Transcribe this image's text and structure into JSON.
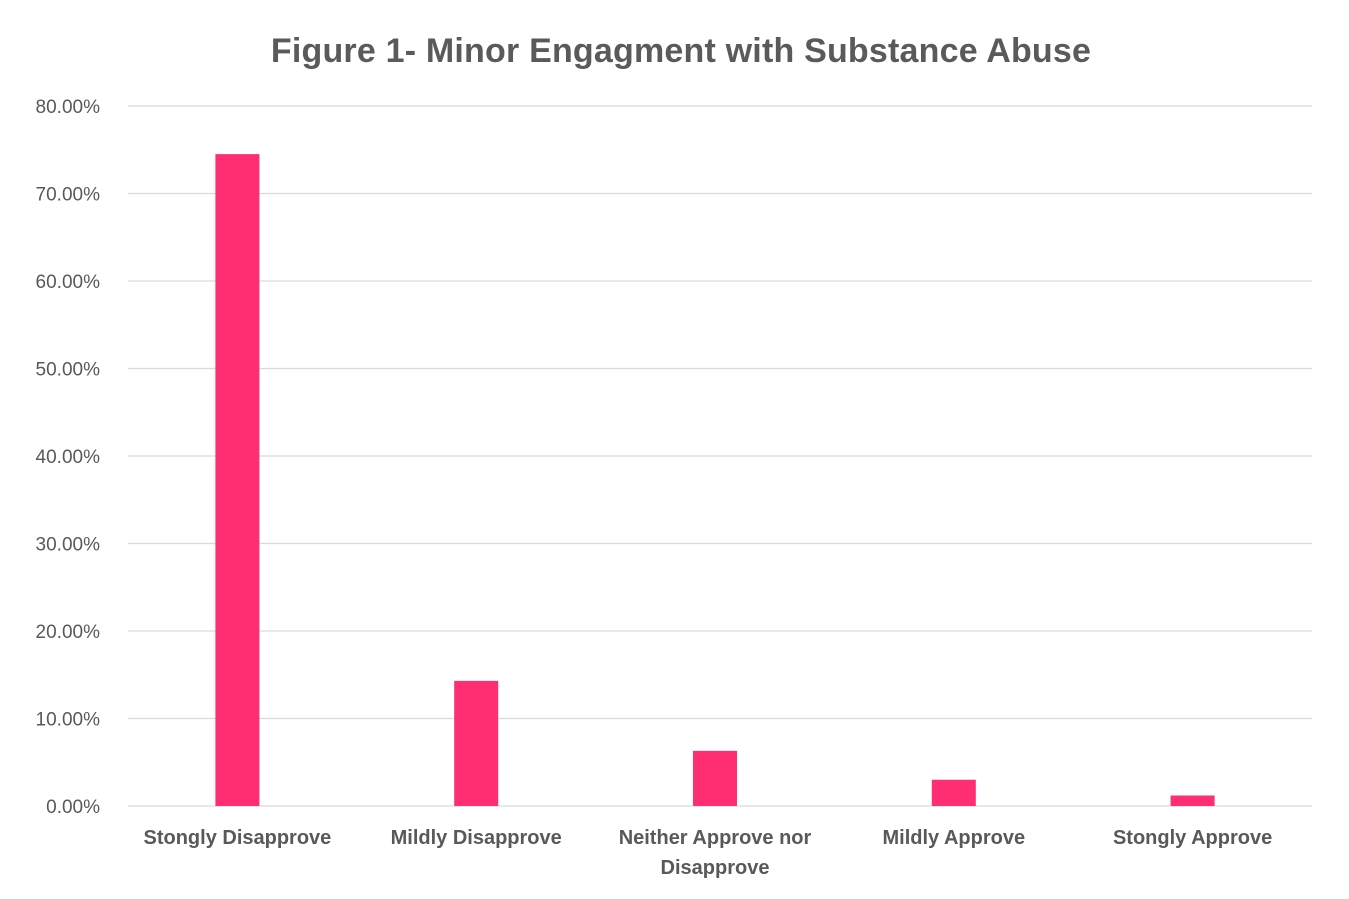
{
  "chart_data": {
    "type": "bar",
    "title": "Figure 1- Minor Engagment with Substance Abuse",
    "xlabel": "",
    "ylabel": "",
    "categories": [
      "Stongly Disapprove",
      "Mildly Disapprove",
      "Neither Approve nor Disapprove",
      "Mildly Approve",
      "Stongly Approve"
    ],
    "category_label_lines": [
      [
        "Stongly Disapprove"
      ],
      [
        "Mildly Disapprove"
      ],
      [
        "Neither Approve nor",
        "Disapprove"
      ],
      [
        "Mildly Approve"
      ],
      [
        "Stongly Approve"
      ]
    ],
    "values": [
      74.5,
      14.3,
      6.3,
      3.0,
      1.2
    ],
    "ylim": [
      0,
      80
    ],
    "yticks": [
      0,
      10,
      20,
      30,
      40,
      50,
      60,
      70,
      80
    ],
    "ytick_labels": [
      "0.00%",
      "10.00%",
      "20.00%",
      "30.00%",
      "40.00%",
      "50.00%",
      "60.00%",
      "70.00%",
      "80.00%"
    ],
    "grid": true,
    "legend": "none",
    "colors": {
      "bar": "#ff2d72",
      "grid": "#d9d9d9",
      "text": "#595959"
    }
  }
}
